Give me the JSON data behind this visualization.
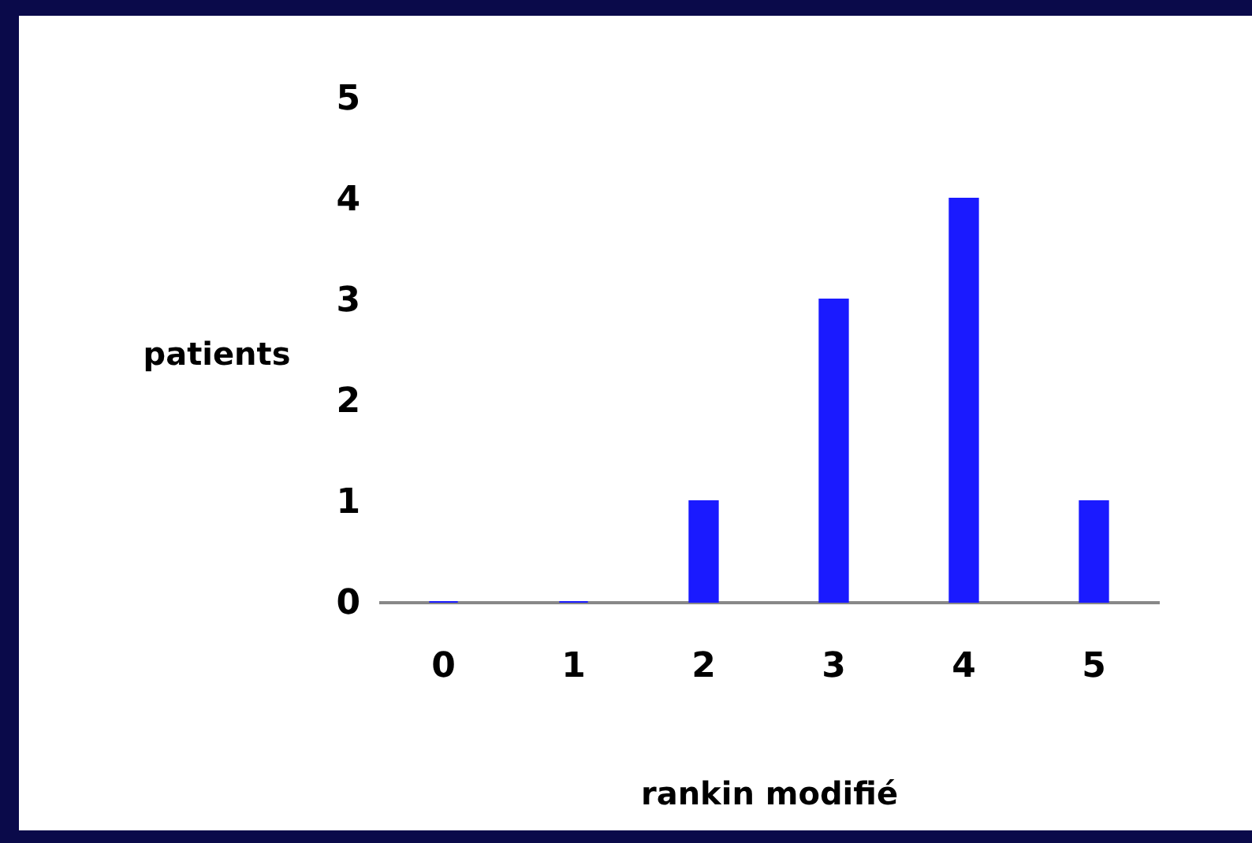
{
  "chart_data": {
    "type": "bar",
    "xlabel": "rankin modifié",
    "ylabel": "patients",
    "categories": [
      "0",
      "1",
      "2",
      "3",
      "4",
      "5"
    ],
    "values": [
      0,
      0,
      1,
      3,
      4,
      1
    ],
    "color": "#1a1aff",
    "ylim": [
      0,
      5
    ],
    "yticks": [
      0,
      1,
      2,
      3,
      4,
      5
    ],
    "grid": false
  }
}
